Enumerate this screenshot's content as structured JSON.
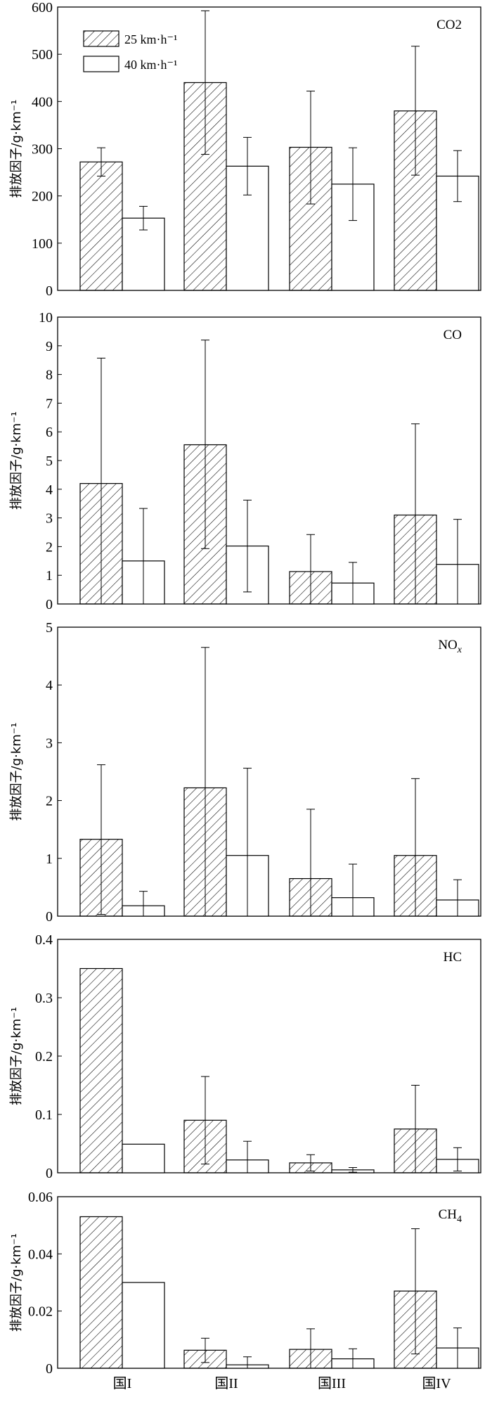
{
  "chart_data": [
    {
      "type": "bar",
      "title": "CO2",
      "title_sub": "",
      "ylabel": "排放因子/g·km⁻¹",
      "ylim": [
        0,
        600
      ],
      "yticks": [
        "0",
        "100",
        "200",
        "300",
        "400",
        "500",
        "600"
      ],
      "categories": [
        "国I",
        "国II",
        "国III",
        "国IV"
      ],
      "legend": {
        "position": "top-left",
        "entries": [
          "25 km·h⁻¹",
          "40 km·h⁻¹"
        ]
      },
      "series": [
        {
          "name": "25 km·h⁻¹",
          "pattern": "hatched",
          "values": [
            272,
            440,
            303,
            380
          ],
          "err_low": [
            242,
            288,
            183,
            244
          ],
          "err_high": [
            302,
            592,
            422,
            517
          ]
        },
        {
          "name": "40 km·h⁻¹",
          "pattern": "open",
          "values": [
            153,
            263,
            225,
            242
          ],
          "err_low": [
            128,
            202,
            148,
            188
          ],
          "err_high": [
            178,
            324,
            302,
            296
          ]
        }
      ]
    },
    {
      "type": "bar",
      "title": "CO",
      "title_sub": "",
      "ylabel": "排放因子/g·km⁻¹",
      "ylim": [
        0,
        10
      ],
      "yticks": [
        "0",
        "1",
        "2",
        "3",
        "4",
        "5",
        "6",
        "7",
        "8",
        "9",
        "10"
      ],
      "categories": [
        "国I",
        "国II",
        "国III",
        "国IV"
      ],
      "series": [
        {
          "name": "25 km·h⁻¹",
          "pattern": "hatched",
          "values": [
            4.2,
            5.55,
            1.13,
            3.1
          ],
          "err_low": [
            0.0,
            1.93,
            0.0,
            0.0
          ],
          "err_high": [
            8.57,
            9.2,
            2.42,
            6.28
          ]
        },
        {
          "name": "40 km·h⁻¹",
          "pattern": "open",
          "values": [
            1.5,
            2.02,
            0.73,
            1.38
          ],
          "err_low": [
            0.0,
            0.42,
            0.0,
            0.0
          ],
          "err_high": [
            3.33,
            3.62,
            1.45,
            2.95
          ]
        }
      ]
    },
    {
      "type": "bar",
      "title": "NO",
      "title_sub": "x",
      "ylabel": "排放因子/g·km⁻¹",
      "ylim": [
        0,
        5
      ],
      "yticks": [
        "0",
        "1",
        "2",
        "3",
        "4",
        "5"
      ],
      "categories": [
        "国I",
        "国II",
        "国III",
        "国IV"
      ],
      "series": [
        {
          "name": "25 km·h⁻¹",
          "pattern": "hatched",
          "values": [
            1.33,
            2.22,
            0.65,
            1.05
          ],
          "err_low": [
            0.03,
            0.0,
            0.0,
            0.0
          ],
          "err_high": [
            2.62,
            4.65,
            1.85,
            2.38
          ]
        },
        {
          "name": "40 km·h⁻¹",
          "pattern": "open",
          "values": [
            0.18,
            1.05,
            0.32,
            0.28
          ],
          "err_low": [
            0.0,
            0.0,
            0.0,
            0.0
          ],
          "err_high": [
            0.43,
            2.56,
            0.9,
            0.63
          ]
        }
      ]
    },
    {
      "type": "bar",
      "title": "HC",
      "title_sub": "",
      "ylabel": "排放因子/g·km⁻¹",
      "ylim": [
        0,
        0.4
      ],
      "yticks": [
        "0",
        "0.1",
        "0.2",
        "0.3",
        "0.4"
      ],
      "categories": [
        "国I",
        "国II",
        "国III",
        "国IV"
      ],
      "series": [
        {
          "name": "25 km·h⁻¹",
          "pattern": "hatched",
          "values": [
            0.35,
            0.09,
            0.017,
            0.075
          ],
          "err_low": [
            0.35,
            0.015,
            0.003,
            0.0
          ],
          "err_high": [
            0.35,
            0.165,
            0.031,
            0.15
          ]
        },
        {
          "name": "40 km·h⁻¹",
          "pattern": "open",
          "values": [
            0.049,
            0.022,
            0.005,
            0.023
          ],
          "err_low": [
            0.049,
            0.0,
            0.001,
            0.003
          ],
          "err_high": [
            0.049,
            0.054,
            0.009,
            0.043
          ]
        }
      ]
    },
    {
      "type": "bar",
      "title": "CH",
      "title_sub": "4",
      "ylabel": "排放因子/g·km⁻¹",
      "ylim": [
        0,
        0.06
      ],
      "yticks": [
        "0",
        "0.02",
        "0.04",
        "0.06"
      ],
      "categories": [
        "国I",
        "国II",
        "国III",
        "国IV"
      ],
      "series": [
        {
          "name": "25 km·h⁻¹",
          "pattern": "hatched",
          "values": [
            0.053,
            0.0063,
            0.0066,
            0.027
          ],
          "err_low": [
            0.053,
            0.002,
            0.0,
            0.005
          ],
          "err_high": [
            0.053,
            0.0105,
            0.0138,
            0.0488
          ]
        },
        {
          "name": "40 km·h⁻¹",
          "pattern": "open",
          "values": [
            0.03,
            0.0012,
            0.0033,
            0.0071
          ],
          "err_low": [
            0.03,
            0.0,
            0.0,
            0.0
          ],
          "err_high": [
            0.03,
            0.004,
            0.0068,
            0.0141
          ]
        }
      ]
    }
  ]
}
